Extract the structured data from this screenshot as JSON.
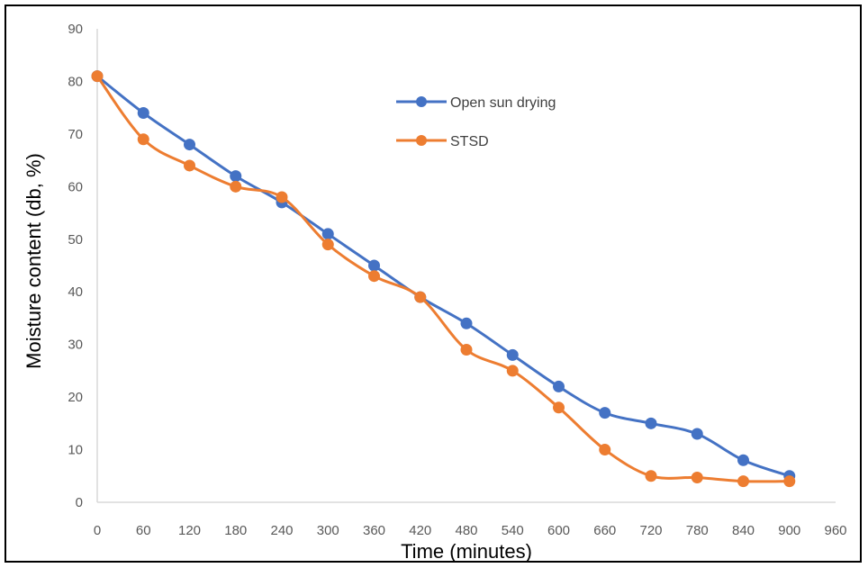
{
  "chart_data": {
    "type": "line",
    "xlabel": "Time (minutes)",
    "ylabel": "Moisture content (db, %)",
    "xlim": [
      0,
      960
    ],
    "ylim": [
      0,
      90
    ],
    "x_ticks": [
      0,
      60,
      120,
      180,
      240,
      300,
      360,
      420,
      480,
      540,
      600,
      660,
      720,
      780,
      840,
      900,
      960
    ],
    "y_ticks": [
      0,
      10,
      20,
      30,
      40,
      50,
      60,
      70,
      80,
      90
    ],
    "grid": false,
    "legend_position": "upper-center",
    "x": [
      0,
      60,
      120,
      180,
      240,
      300,
      360,
      420,
      480,
      540,
      600,
      660,
      720,
      780,
      840,
      900
    ],
    "series": [
      {
        "name": "Open sun drying",
        "color": "#4472C4",
        "values": [
          81,
          74,
          68,
          62,
          57,
          51,
          45,
          39,
          34,
          28,
          22,
          17,
          15,
          13,
          8,
          5
        ]
      },
      {
        "name": "STSD",
        "color": "#ED7D31",
        "values": [
          81,
          69,
          64,
          60,
          58,
          49,
          43,
          39,
          29,
          25,
          18,
          10,
          5,
          4.7,
          4,
          4
        ]
      }
    ]
  }
}
